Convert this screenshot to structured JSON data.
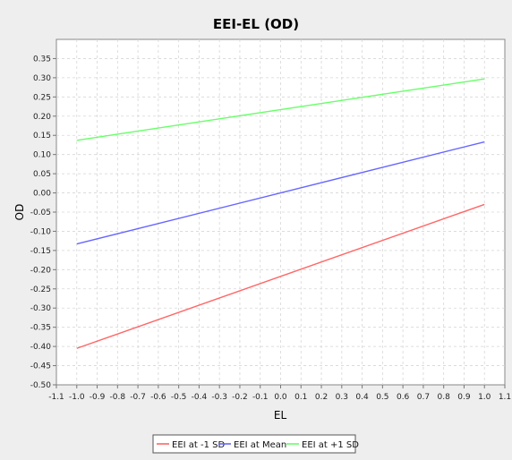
{
  "chart_data": {
    "type": "line",
    "title": "EEI-EL (OD)",
    "xlabel": "EL",
    "ylabel": "OD",
    "xlim": [
      -1.1,
      1.1
    ],
    "ylim": [
      -0.5,
      0.4
    ],
    "x_ticks": [
      "-1.1",
      "-1.0",
      "-0.9",
      "-0.8",
      "-0.7",
      "-0.6",
      "-0.5",
      "-0.4",
      "-0.3",
      "-0.2",
      "-0.1",
      "0.0",
      "0.1",
      "0.2",
      "0.3",
      "0.4",
      "0.5",
      "0.6",
      "0.7",
      "0.8",
      "0.9",
      "1.0",
      "1.1"
    ],
    "y_ticks": [
      "-0.50",
      "-0.45",
      "-0.40",
      "-0.35",
      "-0.30",
      "-0.25",
      "-0.20",
      "-0.15",
      "-0.10",
      "-0.05",
      "0.00",
      "0.05",
      "0.10",
      "0.15",
      "0.20",
      "0.25",
      "0.30",
      "0.35"
    ],
    "grid": true,
    "legend_position": "bottom",
    "series": [
      {
        "name": "EEI at -1 SD",
        "color": "#ff6666",
        "x": [
          -1.0,
          1.0
        ],
        "y": [
          -0.405,
          -0.03
        ]
      },
      {
        "name": "EEI at Mean",
        "color": "#6666ff",
        "x": [
          -1.0,
          1.0
        ],
        "y": [
          -0.133,
          0.133
        ]
      },
      {
        "name": "EEI at +1 SD",
        "color": "#66ff66",
        "x": [
          -1.0,
          1.0
        ],
        "y": [
          0.137,
          0.297
        ]
      }
    ]
  }
}
